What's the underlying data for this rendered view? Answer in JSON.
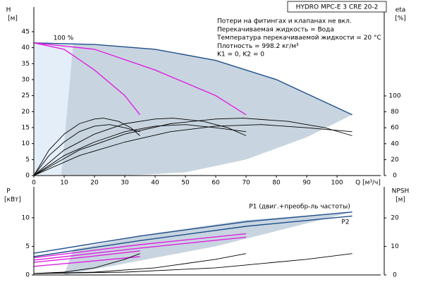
{
  "chart_data": [
    {
      "type": "line",
      "title": "HYDRO MPC-E 3 CRE 20-2",
      "notes": [
        "Потери на фитингах и клапанах не вкл.",
        "Перекачиваемая жидкость = Вода",
        "Температура перекачиваемой жидкости = 20 °C",
        "Плотность = 998.2 кг/м³",
        "K1 = 0, K2 = 0"
      ],
      "annotations": [
        "100 %"
      ],
      "y_label": "H",
      "y_unit": "[м]",
      "y2_label": "eta",
      "y2_unit": "[%]",
      "x_label": "Q [м³/ч]",
      "xlim": [
        0,
        114.4
      ],
      "xticks": [
        0,
        10,
        20,
        30,
        40,
        50,
        60,
        70,
        80,
        90,
        100
      ],
      "ylim": [
        0,
        52.7
      ],
      "yticks": [
        0,
        5,
        10,
        15,
        20,
        25,
        30,
        35,
        40,
        45
      ],
      "y2lim": [
        0,
        211.5
      ],
      "y2ticks": [
        0,
        20,
        40,
        60,
        80,
        100
      ],
      "series": [
        {
          "kind": "area",
          "color": "#e4eef9",
          "x": [
            0,
            13,
            9,
            0
          ],
          "values": [
            41.5,
            41.3,
            0,
            0
          ]
        },
        {
          "kind": "area",
          "color": "#c8d5e0",
          "x": [
            13,
            40,
            60,
            80,
            105,
            90,
            70,
            50,
            30,
            15,
            9
          ],
          "values": [
            41.3,
            39.5,
            36,
            30,
            19,
            12,
            5,
            1,
            0,
            0,
            0
          ]
        },
        {
          "color": "#1f4e8c",
          "x": [
            0,
            20,
            40,
            60,
            80,
            105
          ],
          "values": [
            41.5,
            41,
            39.5,
            36,
            30,
            19
          ]
        },
        {
          "color": "#e020e0",
          "x": [
            0,
            10,
            20,
            30,
            35
          ],
          "values": [
            41.5,
            39.5,
            33,
            25,
            19
          ]
        },
        {
          "color": "#e020e0",
          "x": [
            0,
            20,
            40,
            60,
            70
          ],
          "values": [
            41.5,
            39.5,
            33,
            25,
            19
          ]
        },
        {
          "color": "#000000",
          "axis": "y2",
          "x": [
            0,
            5,
            10,
            15,
            20,
            23,
            28,
            32,
            35
          ],
          "values": [
            0,
            32,
            52,
            65,
            71,
            72,
            68,
            60,
            50
          ]
        },
        {
          "color": "#000000",
          "axis": "y2",
          "x": [
            0,
            5,
            10,
            15,
            20,
            25,
            30,
            35
          ],
          "values": [
            0,
            25,
            42,
            55,
            62,
            64,
            60,
            55
          ]
        },
        {
          "color": "#000000",
          "axis": "y2",
          "x": [
            0,
            10,
            20,
            30,
            40,
            46,
            56,
            64,
            70
          ],
          "values": [
            0,
            32,
            52,
            65,
            71,
            72,
            68,
            60,
            50
          ]
        },
        {
          "color": "#000000",
          "axis": "y2",
          "x": [
            0,
            10,
            20,
            30,
            40,
            50,
            60,
            70
          ],
          "values": [
            0,
            25,
            42,
            55,
            62,
            64,
            60,
            55
          ]
        },
        {
          "color": "#000000",
          "axis": "y2",
          "x": [
            0,
            15,
            30,
            45,
            60,
            69,
            84,
            96,
            105
          ],
          "values": [
            0,
            32,
            52,
            65,
            71,
            72,
            68,
            60,
            50
          ]
        },
        {
          "color": "#000000",
          "axis": "y2",
          "x": [
            0,
            15,
            30,
            45,
            60,
            75,
            90,
            105
          ],
          "values": [
            0,
            25,
            42,
            55,
            62,
            64,
            60,
            55
          ]
        }
      ]
    },
    {
      "type": "line",
      "annotations": [
        "P1 (двиг.+преобр-ль частоты)",
        "P2"
      ],
      "y_label": "P",
      "y_unit": "[кВт]",
      "y2_label": "NPSH",
      "y2_unit": "[м]",
      "xlim": [
        0,
        114.4
      ],
      "ylim": [
        0,
        15.4
      ],
      "yticks": [
        0,
        5,
        10
      ],
      "y2lim": [
        0,
        30.9
      ],
      "y2ticks": [
        0,
        10,
        20
      ],
      "series": [
        {
          "kind": "area",
          "color": "#c8d5e0",
          "x": [
            13,
            40,
            70,
            105,
            90,
            60,
            30,
            10
          ],
          "values": [
            4.5,
            7.3,
            9.6,
            11,
            9,
            5,
            2,
            0
          ]
        },
        {
          "color": "#1f4e8c",
          "x": [
            0,
            35,
            70,
            105
          ],
          "values": [
            3.8,
            6.8,
            9.3,
            11
          ]
        },
        {
          "color": "#1f4e8c",
          "x": [
            0,
            35,
            70,
            105
          ],
          "values": [
            3.2,
            6,
            8.5,
            10.3
          ]
        },
        {
          "color": "#e020e0",
          "x": [
            0,
            15,
            35
          ],
          "values": [
            2.2,
            3,
            4.2
          ]
        },
        {
          "color": "#e020e0",
          "x": [
            0,
            15,
            35
          ],
          "values": [
            1.5,
            2.2,
            3.2
          ]
        },
        {
          "color": "#e020e0",
          "x": [
            0,
            35,
            70
          ],
          "values": [
            3,
            5.3,
            7.2
          ]
        },
        {
          "color": "#e020e0",
          "x": [
            0,
            35,
            70
          ],
          "values": [
            2.6,
            4.7,
            6.6
          ]
        },
        {
          "color": "#000000",
          "axis": "y2",
          "x": [
            0,
            10,
            20,
            30,
            35
          ],
          "values": [
            0.5,
            1,
            2.5,
            5.5,
            7.5
          ]
        },
        {
          "color": "#000000",
          "axis": "y2",
          "x": [
            0,
            20,
            40,
            60,
            70
          ],
          "values": [
            0.5,
            1,
            2.5,
            5.5,
            7.5
          ]
        },
        {
          "color": "#000000",
          "axis": "y2",
          "x": [
            0,
            30,
            60,
            90,
            105
          ],
          "values": [
            0.5,
            1,
            2.5,
            5.5,
            7.5
          ]
        }
      ]
    }
  ]
}
